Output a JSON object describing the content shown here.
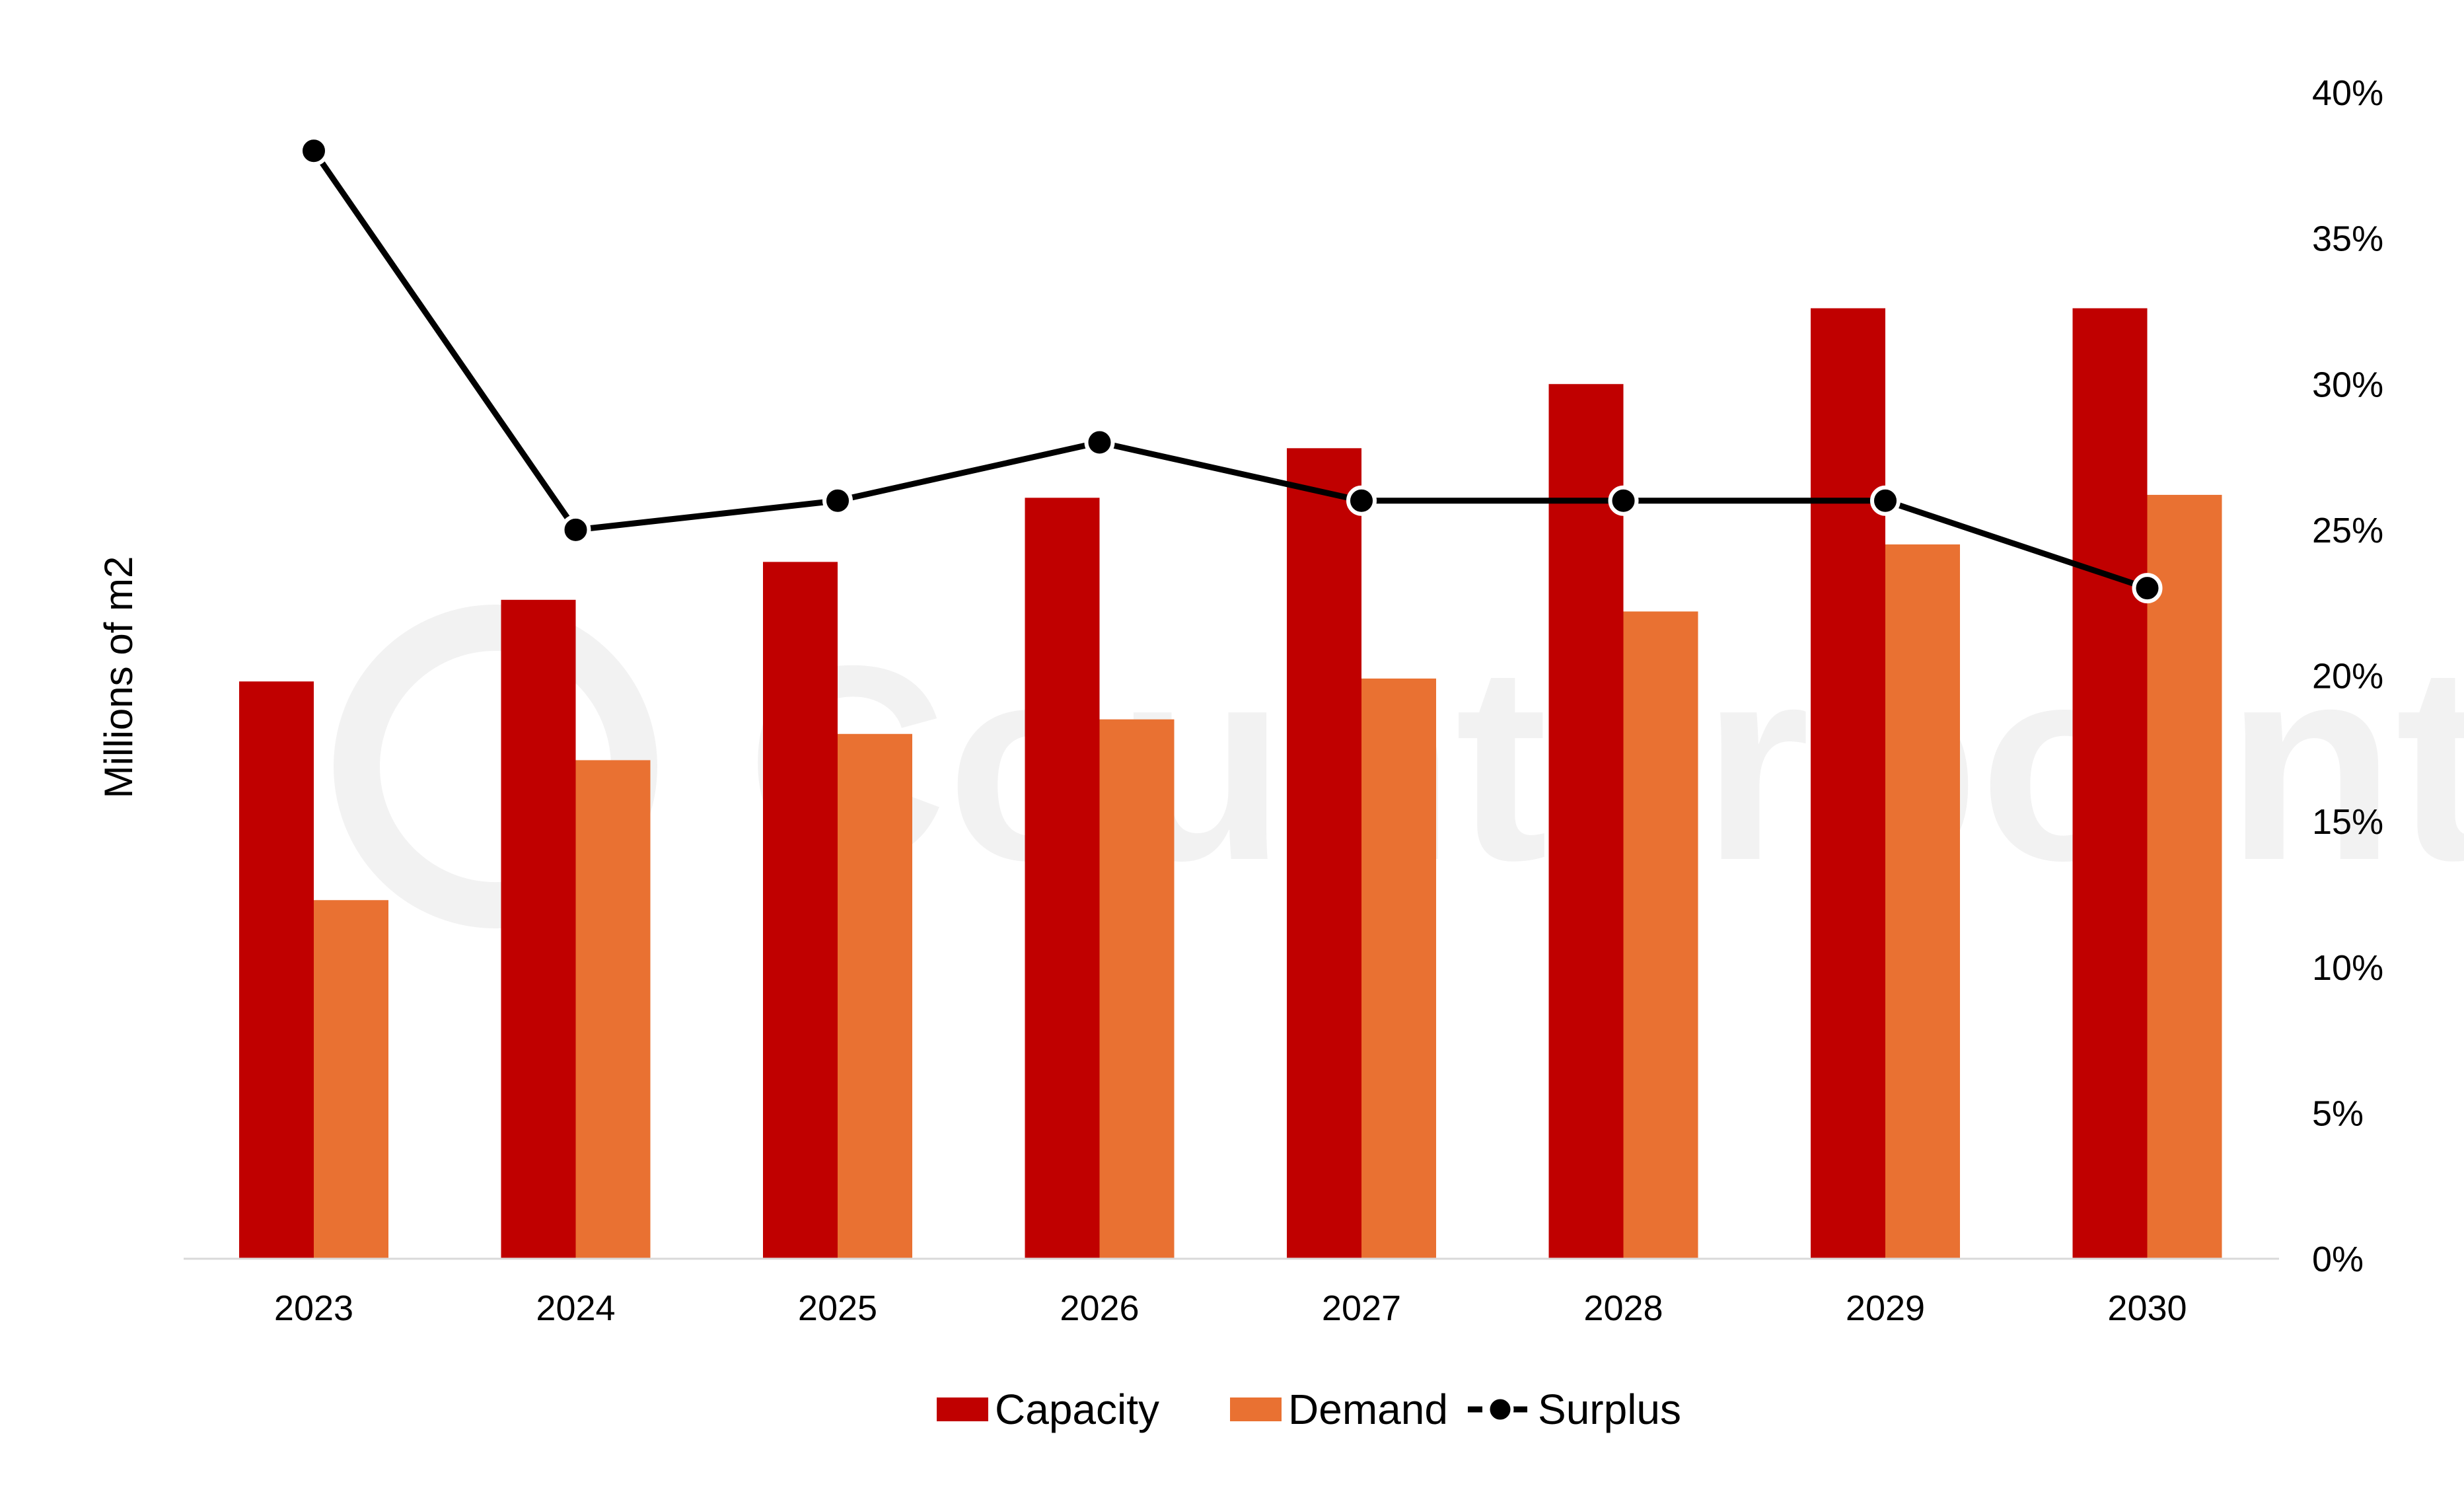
{
  "chart_data": {
    "type": "bar",
    "categories": [
      "2023",
      "2024",
      "2025",
      "2026",
      "2027",
      "2028",
      "2029",
      "2030"
    ],
    "series": [
      {
        "name": "Capacity",
        "kind": "bar",
        "axis": "left",
        "color": "#c00000",
        "values": [
          19.8,
          22.6,
          23.9,
          26.1,
          27.8,
          30.0,
          32.6,
          32.6
        ]
      },
      {
        "name": "Demand",
        "kind": "bar",
        "axis": "left",
        "color": "#e97132",
        "values": [
          12.3,
          17.1,
          18.0,
          18.5,
          19.9,
          22.2,
          24.5,
          26.2
        ]
      },
      {
        "name": "Surplus",
        "kind": "line",
        "axis": "right",
        "color": "#000000",
        "values": [
          0.38,
          0.25,
          0.26,
          0.28,
          0.26,
          0.26,
          0.26,
          0.23
        ]
      }
    ],
    "ylabel": "Millions of m2",
    "ylim": [
      0,
      40
    ],
    "y2lim": [
      0,
      0.4
    ],
    "y2ticks": [
      "0%",
      "5%",
      "10%",
      "15%",
      "20%",
      "25%",
      "30%",
      "35%",
      "40%"
    ],
    "legend_position": "bottom",
    "grid": false,
    "watermark": "Counterpoint"
  }
}
